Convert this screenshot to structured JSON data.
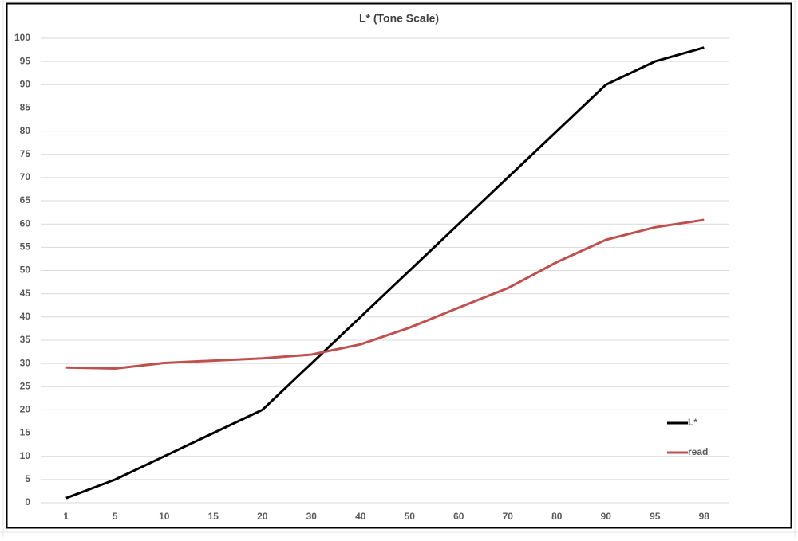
{
  "chart_data": {
    "type": "line",
    "title": "L* (Tone Scale)",
    "categories": [
      1,
      5,
      10,
      15,
      20,
      30,
      40,
      50,
      60,
      70,
      80,
      90,
      95,
      98
    ],
    "series": [
      {
        "name": "L*",
        "color": "#000000",
        "values": [
          1,
          5,
          10,
          15,
          20,
          30,
          40,
          50,
          60,
          70,
          80,
          90,
          95,
          98
        ]
      },
      {
        "name": "read",
        "color": "#c0504d",
        "values": [
          29.1,
          28.9,
          30.1,
          30.6,
          31.1,
          31.9,
          34.1,
          37.7,
          42.0,
          46.2,
          51.8,
          56.6,
          59.3,
          60.9
        ]
      }
    ],
    "ylim": [
      0,
      100
    ],
    "yticks": [
      0,
      5,
      10,
      15,
      20,
      25,
      30,
      35,
      40,
      45,
      50,
      55,
      60,
      65,
      70,
      75,
      80,
      85,
      90,
      95,
      100
    ],
    "grid": true,
    "legend": "right"
  }
}
